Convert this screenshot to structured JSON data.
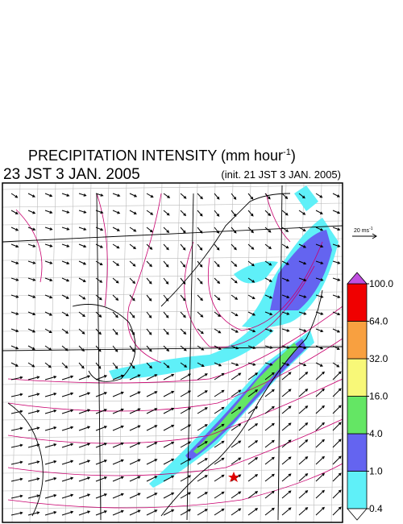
{
  "title": {
    "text": "PRECIPITATION INTENSITY (mm hour",
    "superscript": "-1",
    "closing": ")"
  },
  "valid_time": "23 JST 3 JAN. 2005",
  "init_time": "(init. 21 JST 3 JAN. 2005)",
  "vector_key": {
    "text": "20 ms",
    "superscript": "-1"
  },
  "colorbar": {
    "levels": [
      {
        "value": 0.4,
        "label": "0.4"
      },
      {
        "value": 1,
        "label": "1.0"
      },
      {
        "value": 4,
        "label": "4.0"
      },
      {
        "value": 16,
        "label": "16.0"
      },
      {
        "value": 32,
        "label": "32.0"
      },
      {
        "value": 64,
        "label": "64.0"
      },
      {
        "value": 100,
        "label": "100.0"
      }
    ],
    "colors": [
      "#5ff0f8",
      "#6464f0",
      "#64e664",
      "#f8f878",
      "#f8a040",
      "#f00000"
    ],
    "under_color": "#ffffff",
    "over_color": "#c050e0"
  }
}
